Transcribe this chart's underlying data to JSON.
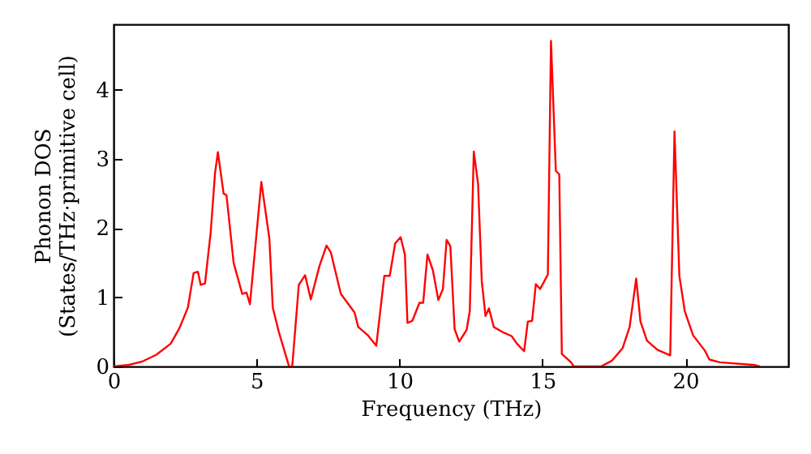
{
  "chart_data": {
    "type": "line",
    "xlabel": "Frequency (THz)",
    "ylabel": "Phonon DOS\n(States/THz·primitive cell)",
    "xlim": [
      0,
      23.6
    ],
    "ylim": [
      0,
      4.95
    ],
    "xticks": [
      0,
      5,
      10,
      15,
      20
    ],
    "yticks": [
      0,
      1,
      2,
      3,
      4
    ],
    "grid": false,
    "marker": "none",
    "line_style": "solid",
    "series": [
      {
        "color": "#ff0000",
        "x": [
          0,
          0.5,
          1,
          1.5,
          2,
          2.3,
          2.6,
          2.8,
          2.95,
          3.05,
          3.2,
          3.4,
          3.55,
          3.65,
          3.85,
          3.95,
          4.2,
          4.5,
          4.65,
          4.77,
          5.17,
          5.45,
          5.57,
          5.78,
          6.14,
          6.25,
          6.48,
          6.7,
          6.9,
          7.2,
          7.45,
          7.6,
          7.95,
          8.43,
          8.56,
          8.9,
          9.19,
          9.47,
          9.66,
          9.85,
          10.04,
          10.19,
          10.28,
          10.45,
          10.7,
          10.83,
          10.98,
          11.17,
          11.36,
          11.52,
          11.65,
          11.78,
          11.93,
          12.09,
          12.35,
          12.46,
          12.6,
          12.75,
          12.88,
          13.01,
          13.13,
          13.3,
          13.64,
          13.92,
          14.11,
          14.36,
          14.49,
          14.64,
          14.77,
          14.92,
          15.19,
          15.3,
          15.47,
          15.59,
          15.68,
          16.0,
          16.1,
          17.05,
          17.42,
          17.8,
          18.05,
          18.28,
          18.43,
          18.66,
          19.03,
          19.47,
          19.62,
          19.79,
          19.98,
          20.27,
          20.68,
          20.84,
          21.2,
          22.44,
          22.6
        ],
        "values": [
          0,
          0.02,
          0.07,
          0.17,
          0.33,
          0.55,
          0.85,
          1.35,
          1.37,
          1.18,
          1.2,
          1.95,
          2.8,
          3.1,
          2.5,
          2.48,
          1.5,
          1.05,
          1.07,
          0.9,
          2.67,
          1.85,
          0.85,
          0.5,
          0,
          0,
          1.18,
          1.32,
          0.97,
          1.45,
          1.75,
          1.65,
          1.05,
          0.78,
          0.57,
          0.45,
          0.3,
          1.31,
          1.31,
          1.78,
          1.87,
          1.62,
          0.63,
          0.66,
          0.92,
          0.92,
          1.62,
          1.39,
          0.96,
          1.12,
          1.83,
          1.74,
          0.54,
          0.36,
          0.53,
          0.8,
          3.11,
          2.64,
          1.23,
          0.73,
          0.84,
          0.57,
          0.49,
          0.44,
          0.33,
          0.22,
          0.65,
          0.66,
          1.19,
          1.12,
          1.33,
          4.71,
          2.83,
          2.78,
          0.18,
          0.06,
          0,
          0,
          0.08,
          0.26,
          0.57,
          1.27,
          0.65,
          0.37,
          0.24,
          0.16,
          3.4,
          1.31,
          0.8,
          0.45,
          0.23,
          0.1,
          0.06,
          0.02,
          0
        ]
      }
    ]
  }
}
